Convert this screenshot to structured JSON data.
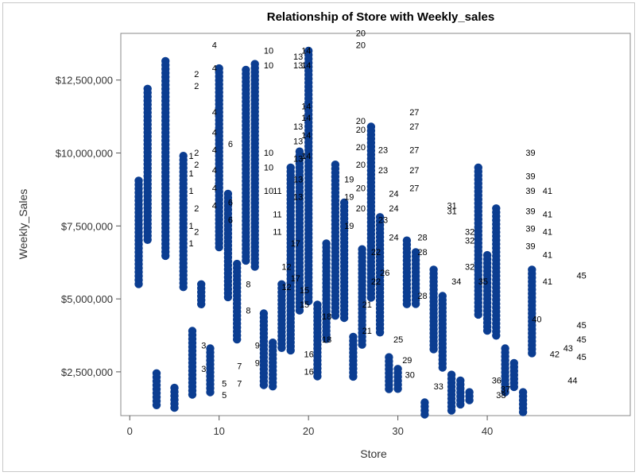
{
  "chart_data": {
    "type": "scatter",
    "title": "Relationship of Store with Weekly_sales",
    "xlabel": "Store",
    "ylabel": "Weekly_Sales",
    "xlim": [
      -1,
      56
    ],
    "ylim": [
      1000000,
      14100000
    ],
    "xticks": [
      0,
      10,
      20,
      30,
      40
    ],
    "xtick_labels": [
      "0",
      "10",
      "20",
      "30",
      "40"
    ],
    "yticks": [
      2500000,
      5000000,
      7500000,
      10000000,
      12500000
    ],
    "ytick_labels": [
      "$2,500,000",
      "$5,000,000",
      "$7,500,000",
      "$10,000,000",
      "$12,500,000"
    ],
    "marker_color": "#0b3d91",
    "label_color": "#000000",
    "grid": false,
    "legend": "none",
    "points": [
      {
        "store": 1,
        "min": 5450000,
        "max": 9050000
      },
      {
        "store": 2,
        "min": 7000000,
        "max": 12200000
      },
      {
        "store": 3,
        "min": 1350000,
        "max": 2450000
      },
      {
        "store": 4,
        "min": 6400000,
        "max": 13150000
      },
      {
        "store": 5,
        "min": 1150000,
        "max": 1950000
      },
      {
        "store": 6,
        "min": 5400000,
        "max": 9900000
      },
      {
        "store": 7,
        "min": 1700000,
        "max": 3900000
      },
      {
        "store": 8,
        "min": 4700000,
        "max": 5500000
      },
      {
        "store": 9,
        "min": 1800000,
        "max": 3300000
      },
      {
        "store": 10,
        "min": 6700000,
        "max": 12900000
      },
      {
        "store": 11,
        "min": 5000000,
        "max": 8600000
      },
      {
        "store": 12,
        "min": 3600000,
        "max": 6200000
      },
      {
        "store": 13,
        "min": 6200000,
        "max": 12850000
      },
      {
        "store": 14,
        "min": 6000000,
        "max": 13050000
      },
      {
        "store": 15,
        "min": 2000000,
        "max": 4500000
      },
      {
        "store": 16,
        "min": 1900000,
        "max": 3500000
      },
      {
        "store": 17,
        "min": 3300000,
        "max": 5500000
      },
      {
        "store": 18,
        "min": 3200000,
        "max": 9500000
      },
      {
        "store": 19,
        "min": 4500000,
        "max": 10050000
      },
      {
        "store": 20,
        "min": 4800000,
        "max": 13500000
      },
      {
        "store": 21,
        "min": 2300000,
        "max": 4800000
      },
      {
        "store": 22,
        "min": 3500000,
        "max": 6900000
      },
      {
        "store": 23,
        "min": 4400000,
        "max": 9600000
      },
      {
        "store": 24,
        "min": 4300000,
        "max": 8300000
      },
      {
        "store": 25,
        "min": 2300000,
        "max": 3700000
      },
      {
        "store": 26,
        "min": 3300000,
        "max": 6700000
      },
      {
        "store": 27,
        "min": 5000000,
        "max": 10900000
      },
      {
        "store": 28,
        "min": 3800000,
        "max": 7800000
      },
      {
        "store": 29,
        "min": 1900000,
        "max": 3000000
      },
      {
        "store": 30,
        "min": 1900000,
        "max": 2600000
      },
      {
        "store": 31,
        "min": 4700000,
        "max": 7000000
      },
      {
        "store": 32,
        "min": 4800000,
        "max": 6600000
      },
      {
        "store": 33,
        "min": 1000000,
        "max": 1450000
      },
      {
        "store": 34,
        "min": 3200000,
        "max": 6000000
      },
      {
        "store": 35,
        "min": 2600000,
        "max": 5100000
      },
      {
        "store": 36,
        "min": 1100000,
        "max": 2400000
      },
      {
        "store": 37,
        "min": 1300000,
        "max": 2200000
      },
      {
        "store": 38,
        "min": 1400000,
        "max": 1800000
      },
      {
        "store": 39,
        "min": 4400000,
        "max": 9500000
      },
      {
        "store": 40,
        "min": 3800000,
        "max": 6500000
      },
      {
        "store": 41,
        "min": 3700000,
        "max": 8100000
      },
      {
        "store": 42,
        "min": 1700000,
        "max": 3300000
      },
      {
        "store": 43,
        "min": 1900000,
        "max": 2800000
      },
      {
        "store": 44,
        "min": 1100000,
        "max": 1800000
      },
      {
        "store": 45,
        "min": 3100000,
        "max": 6000000
      }
    ],
    "labels": [
      {
        "text": "1",
        "x": 6.6,
        "y": 9800000
      },
      {
        "text": "1",
        "x": 6.6,
        "y": 9200000
      },
      {
        "text": "1",
        "x": 6.6,
        "y": 8600000
      },
      {
        "text": "1",
        "x": 6.6,
        "y": 7400000
      },
      {
        "text": "1",
        "x": 6.6,
        "y": 6800000
      },
      {
        "text": "2",
        "x": 7.2,
        "y": 12600000
      },
      {
        "text": "2",
        "x": 7.2,
        "y": 12200000
      },
      {
        "text": "2",
        "x": 7.2,
        "y": 9900000
      },
      {
        "text": "2",
        "x": 7.2,
        "y": 9500000
      },
      {
        "text": "2",
        "x": 7.2,
        "y": 8000000
      },
      {
        "text": "2",
        "x": 7.2,
        "y": 7200000
      },
      {
        "text": "3",
        "x": 8.0,
        "y": 3300000
      },
      {
        "text": "3",
        "x": 8.0,
        "y": 2500000
      },
      {
        "text": "4",
        "x": 9.2,
        "y": 13600000
      },
      {
        "text": "4",
        "x": 9.2,
        "y": 12800000
      },
      {
        "text": "4",
        "x": 9.2,
        "y": 11300000
      },
      {
        "text": "4",
        "x": 9.2,
        "y": 10600000
      },
      {
        "text": "4",
        "x": 9.2,
        "y": 10000000
      },
      {
        "text": "4",
        "x": 9.2,
        "y": 9300000
      },
      {
        "text": "4",
        "x": 9.2,
        "y": 8700000
      },
      {
        "text": "4",
        "x": 9.2,
        "y": 8100000
      },
      {
        "text": "5",
        "x": 10.3,
        "y": 2000000
      },
      {
        "text": "5",
        "x": 10.3,
        "y": 1600000
      },
      {
        "text": "6",
        "x": 11.0,
        "y": 10200000
      },
      {
        "text": "6",
        "x": 11.0,
        "y": 8200000
      },
      {
        "text": "6",
        "x": 11.0,
        "y": 7600000
      },
      {
        "text": "7",
        "x": 12.0,
        "y": 2600000
      },
      {
        "text": "7",
        "x": 12.0,
        "y": 2000000
      },
      {
        "text": "8",
        "x": 13.0,
        "y": 5400000
      },
      {
        "text": "8",
        "x": 13.0,
        "y": 4500000
      },
      {
        "text": "9",
        "x": 14.0,
        "y": 3300000
      },
      {
        "text": "9",
        "x": 14.0,
        "y": 2700000
      },
      {
        "text": "10",
        "x": 15.0,
        "y": 13400000
      },
      {
        "text": "10",
        "x": 15.0,
        "y": 12900000
      },
      {
        "text": "10",
        "x": 15.0,
        "y": 9900000
      },
      {
        "text": "10",
        "x": 15.0,
        "y": 9400000
      },
      {
        "text": "10",
        "x": 15.0,
        "y": 8600000
      },
      {
        "text": "11",
        "x": 16.0,
        "y": 8600000
      },
      {
        "text": "11",
        "x": 16.0,
        "y": 7800000
      },
      {
        "text": "11",
        "x": 16.0,
        "y": 7200000
      },
      {
        "text": "12",
        "x": 17.0,
        "y": 6000000
      },
      {
        "text": "12",
        "x": 17.0,
        "y": 5300000
      },
      {
        "text": "13",
        "x": 18.3,
        "y": 13200000
      },
      {
        "text": "13",
        "x": 18.3,
        "y": 12900000
      },
      {
        "text": "13",
        "x": 18.3,
        "y": 10800000
      },
      {
        "text": "13",
        "x": 18.3,
        "y": 10300000
      },
      {
        "text": "13",
        "x": 18.3,
        "y": 9700000
      },
      {
        "text": "13",
        "x": 18.3,
        "y": 9000000
      },
      {
        "text": "13",
        "x": 18.3,
        "y": 8400000
      },
      {
        "text": "14",
        "x": 19.2,
        "y": 13400000
      },
      {
        "text": "14",
        "x": 19.2,
        "y": 12900000
      },
      {
        "text": "14",
        "x": 19.2,
        "y": 11500000
      },
      {
        "text": "14",
        "x": 19.2,
        "y": 11100000
      },
      {
        "text": "14",
        "x": 19.2,
        "y": 10500000
      },
      {
        "text": "14",
        "x": 19.2,
        "y": 9800000
      },
      {
        "text": "15",
        "x": 19.0,
        "y": 5200000
      },
      {
        "text": "15",
        "x": 19.0,
        "y": 4700000
      },
      {
        "text": "16",
        "x": 19.5,
        "y": 3000000
      },
      {
        "text": "16",
        "x": 19.5,
        "y": 2400000
      },
      {
        "text": "17",
        "x": 18.0,
        "y": 6800000
      },
      {
        "text": "17",
        "x": 18.0,
        "y": 5600000
      },
      {
        "text": "18",
        "x": 21.5,
        "y": 4300000
      },
      {
        "text": "18",
        "x": 21.5,
        "y": 3500000
      },
      {
        "text": "19",
        "x": 24.0,
        "y": 9000000
      },
      {
        "text": "19",
        "x": 24.0,
        "y": 8400000
      },
      {
        "text": "19",
        "x": 24.0,
        "y": 7400000
      },
      {
        "text": "20",
        "x": 25.3,
        "y": 14000000
      },
      {
        "text": "20",
        "x": 25.3,
        "y": 13600000
      },
      {
        "text": "20",
        "x": 25.3,
        "y": 11000000
      },
      {
        "text": "20",
        "x": 25.3,
        "y": 10700000
      },
      {
        "text": "20",
        "x": 25.3,
        "y": 10100000
      },
      {
        "text": "20",
        "x": 25.3,
        "y": 9500000
      },
      {
        "text": "20",
        "x": 25.3,
        "y": 8700000
      },
      {
        "text": "20",
        "x": 25.3,
        "y": 8000000
      },
      {
        "text": "21",
        "x": 26.0,
        "y": 4700000
      },
      {
        "text": "21",
        "x": 26.0,
        "y": 3800000
      },
      {
        "text": "22",
        "x": 27.0,
        "y": 6500000
      },
      {
        "text": "22",
        "x": 27.0,
        "y": 5500000
      },
      {
        "text": "23",
        "x": 27.8,
        "y": 10000000
      },
      {
        "text": "23",
        "x": 27.8,
        "y": 9300000
      },
      {
        "text": "23",
        "x": 27.8,
        "y": 7600000
      },
      {
        "text": "24",
        "x": 29.0,
        "y": 8500000
      },
      {
        "text": "24",
        "x": 29.0,
        "y": 8000000
      },
      {
        "text": "24",
        "x": 29.0,
        "y": 7000000
      },
      {
        "text": "25",
        "x": 29.5,
        "y": 3500000
      },
      {
        "text": "26",
        "x": 28.0,
        "y": 5800000
      },
      {
        "text": "27",
        "x": 31.3,
        "y": 11300000
      },
      {
        "text": "27",
        "x": 31.3,
        "y": 10800000
      },
      {
        "text": "27",
        "x": 31.3,
        "y": 10000000
      },
      {
        "text": "27",
        "x": 31.3,
        "y": 9300000
      },
      {
        "text": "27",
        "x": 31.3,
        "y": 8700000
      },
      {
        "text": "28",
        "x": 32.2,
        "y": 7000000
      },
      {
        "text": "28",
        "x": 32.2,
        "y": 6500000
      },
      {
        "text": "28",
        "x": 32.2,
        "y": 5000000
      },
      {
        "text": "29",
        "x": 30.5,
        "y": 2800000
      },
      {
        "text": "30",
        "x": 30.8,
        "y": 2300000
      },
      {
        "text": "31",
        "x": 35.5,
        "y": 8100000
      },
      {
        "text": "31",
        "x": 35.5,
        "y": 7900000
      },
      {
        "text": "32",
        "x": 37.5,
        "y": 7200000
      },
      {
        "text": "32",
        "x": 37.5,
        "y": 6900000
      },
      {
        "text": "32",
        "x": 37.5,
        "y": 6000000
      },
      {
        "text": "33",
        "x": 34.0,
        "y": 1900000
      },
      {
        "text": "34",
        "x": 36.0,
        "y": 5500000
      },
      {
        "text": "35",
        "x": 39.0,
        "y": 5500000
      },
      {
        "text": "36",
        "x": 40.5,
        "y": 2100000
      },
      {
        "text": "37",
        "x": 41.5,
        "y": 1800000
      },
      {
        "text": "38",
        "x": 41.0,
        "y": 1600000
      },
      {
        "text": "39",
        "x": 44.3,
        "y": 9900000
      },
      {
        "text": "39",
        "x": 44.3,
        "y": 9100000
      },
      {
        "text": "39",
        "x": 44.3,
        "y": 8600000
      },
      {
        "text": "39",
        "x": 44.3,
        "y": 7900000
      },
      {
        "text": "39",
        "x": 44.3,
        "y": 7300000
      },
      {
        "text": "39",
        "x": 44.3,
        "y": 6700000
      },
      {
        "text": "40",
        "x": 45.0,
        "y": 4200000
      },
      {
        "text": "41",
        "x": 46.2,
        "y": 8600000
      },
      {
        "text": "41",
        "x": 46.2,
        "y": 7800000
      },
      {
        "text": "41",
        "x": 46.2,
        "y": 7200000
      },
      {
        "text": "41",
        "x": 46.2,
        "y": 6400000
      },
      {
        "text": "41",
        "x": 46.2,
        "y": 5500000
      },
      {
        "text": "42",
        "x": 47.0,
        "y": 3000000
      },
      {
        "text": "43",
        "x": 48.5,
        "y": 3200000
      },
      {
        "text": "44",
        "x": 49.0,
        "y": 2100000
      },
      {
        "text": "45",
        "x": 50.0,
        "y": 5700000
      },
      {
        "text": "45",
        "x": 50.0,
        "y": 4000000
      },
      {
        "text": "45",
        "x": 50.0,
        "y": 3500000
      },
      {
        "text": "45",
        "x": 50.0,
        "y": 2900000
      }
    ]
  }
}
